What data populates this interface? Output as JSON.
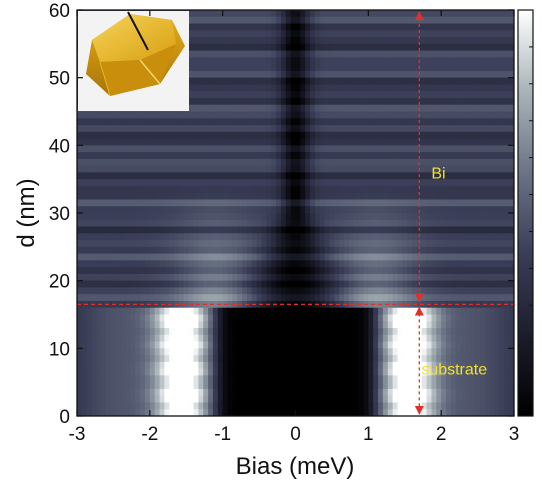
{
  "chart_data": {
    "type": "heatmap",
    "xlabel": "Bias (meV)",
    "ylabel": "d (nm)",
    "xlim": [
      -3,
      3
    ],
    "ylim": [
      0,
      60
    ],
    "x_ticks": [
      "-3",
      "-2",
      "-1",
      "0",
      "1",
      "2",
      "3"
    ],
    "y_ticks": [
      "0",
      "10",
      "20",
      "30",
      "40",
      "50",
      "60"
    ],
    "colormap": [
      "#000000",
      "#1c1d2c",
      "#3a3d57",
      "#6b7385",
      "#a9b4b8",
      "#ffffff"
    ],
    "interface_depth": 16.5,
    "layers": [
      {
        "label": "Bi",
        "range": [
          16.5,
          60
        ],
        "label_y": 36
      },
      {
        "label": "substrate",
        "range": [
          0,
          16.5
        ],
        "label_y": 7
      }
    ],
    "annotation_color": "#f2e02a",
    "marker_color": "#e0302a",
    "marker_x": 1.7,
    "inset": "gold-crystal-with-tip"
  }
}
